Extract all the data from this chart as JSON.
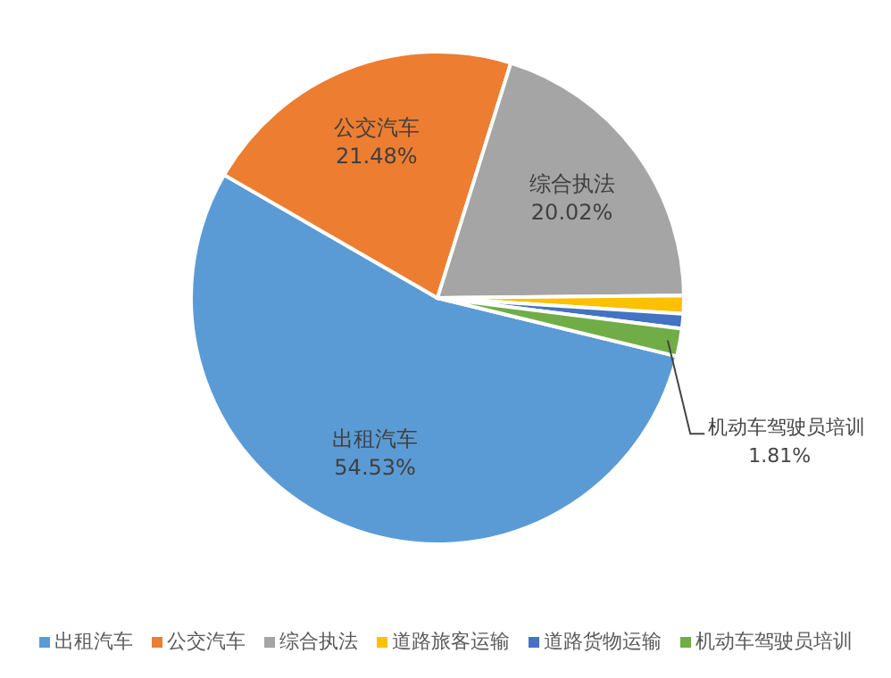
{
  "chart_data": {
    "type": "pie",
    "categories": [
      "出租汽车",
      "公交汽车",
      "综合执法",
      "道路旅客运输",
      "道路货物运输",
      "机动车驾驶员培训"
    ],
    "values": [
      54.53,
      21.48,
      20.02,
      1.2,
      0.96,
      1.81
    ],
    "colors": [
      "#5b9bd5",
      "#ed7d31",
      "#a5a5a5",
      "#ffc000",
      "#4472c4",
      "#70ad47"
    ],
    "value_labels": [
      "54.53%",
      "21.48%",
      "20.02%",
      null,
      null,
      "1.81%"
    ],
    "legend": "bottom"
  }
}
